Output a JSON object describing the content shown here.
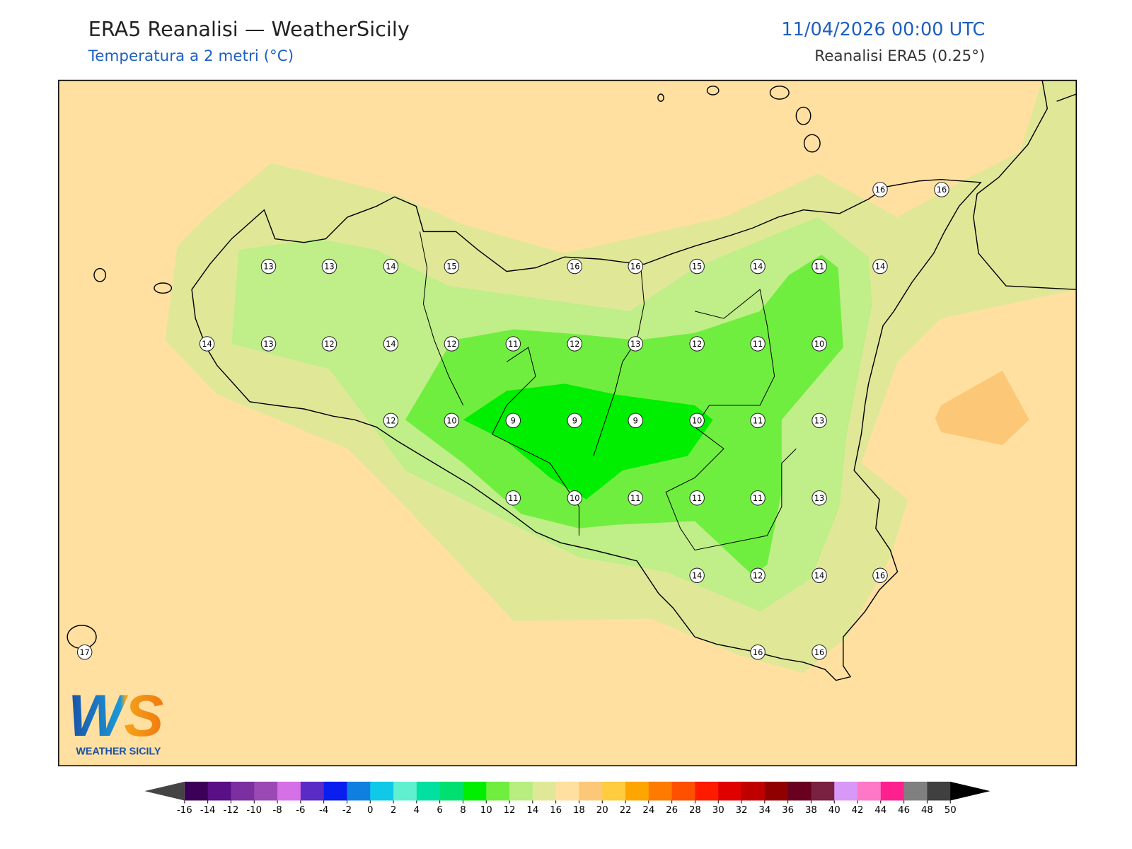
{
  "header": {
    "title": "ERA5 Reanalisi — WeatherSicily",
    "subtitle": "Temperatura a 2 metri (°C)",
    "datetime": "11/04/2026 00:00 UTC",
    "source": "Reanalisi ERA5 (0.25°)"
  },
  "map": {
    "station_values": [
      16,
      16,
      13,
      13,
      14,
      15,
      16,
      16,
      15,
      14,
      11,
      14,
      14,
      13,
      12,
      14,
      12,
      11,
      12,
      13,
      12,
      11,
      10,
      12,
      10,
      9,
      9,
      9,
      10,
      11,
      13,
      11,
      10,
      11,
      11,
      11,
      13,
      14,
      12,
      14,
      16,
      17,
      16,
      16
    ]
  },
  "colorbar": {
    "ticks": [
      -16,
      -14,
      -12,
      -10,
      -8,
      -6,
      -4,
      -2,
      0,
      2,
      4,
      6,
      8,
      10,
      12,
      14,
      16,
      18,
      20,
      22,
      24,
      26,
      28,
      30,
      32,
      34,
      36,
      38,
      40,
      42,
      44,
      46,
      48,
      50
    ],
    "colors": [
      "#3d0058",
      "#5a0f86",
      "#7b2fa0",
      "#9b49b5",
      "#d670e6",
      "#5b2bc6",
      "#0a1ef0",
      "#1080e0",
      "#10c8e8",
      "#60f0d0",
      "#00e0a0",
      "#00e070",
      "#00ee00",
      "#70ee40",
      "#b8ee80",
      "#e0e898",
      "#ffe0a0",
      "#fcc878",
      "#ffcc40",
      "#ffa500",
      "#ff7a00",
      "#ff5000",
      "#ff1a00",
      "#e00000",
      "#c00000",
      "#900000",
      "#6a0020",
      "#7a2040",
      "#d898f8",
      "#ff78c8",
      "#ff2090",
      "#808080",
      "#404040"
    ],
    "under_color": "#444444",
    "over_color": "#000000"
  },
  "logo": {
    "mark": "WS",
    "text": "WEATHER SICILY"
  }
}
